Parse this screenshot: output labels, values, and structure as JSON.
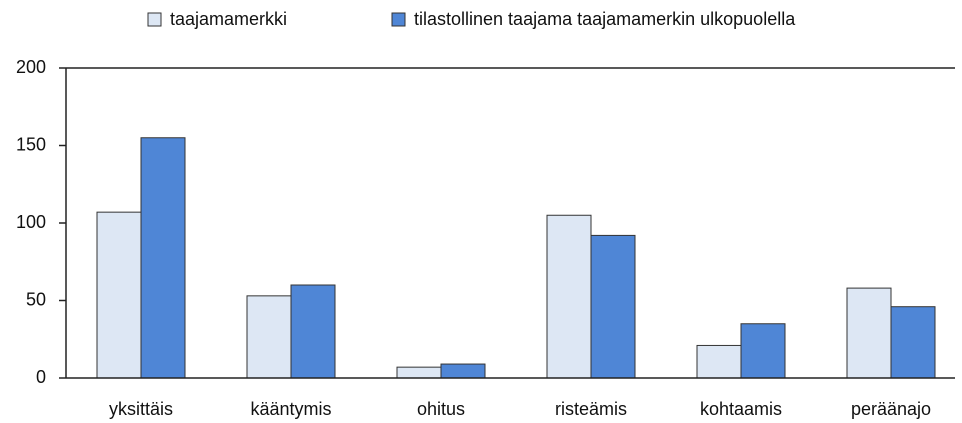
{
  "chart_data": {
    "type": "bar",
    "categories": [
      "yksittäis",
      "kääntymis",
      "ohitus",
      "risteämis",
      "kohtaamis",
      "peräänajo"
    ],
    "series": [
      {
        "name": "taajamamerkki",
        "color": "#dde7f4",
        "values": [
          107,
          53,
          7,
          105,
          21,
          58
        ]
      },
      {
        "name": "tilastollinen taajama taajamamerkin ulkopuolella",
        "color": "#4f86d6",
        "values": [
          155,
          60,
          9,
          92,
          35,
          46
        ]
      }
    ],
    "ylim": [
      0,
      200
    ],
    "yticks": [
      0,
      50,
      100,
      150,
      200
    ],
    "legend": "top"
  }
}
